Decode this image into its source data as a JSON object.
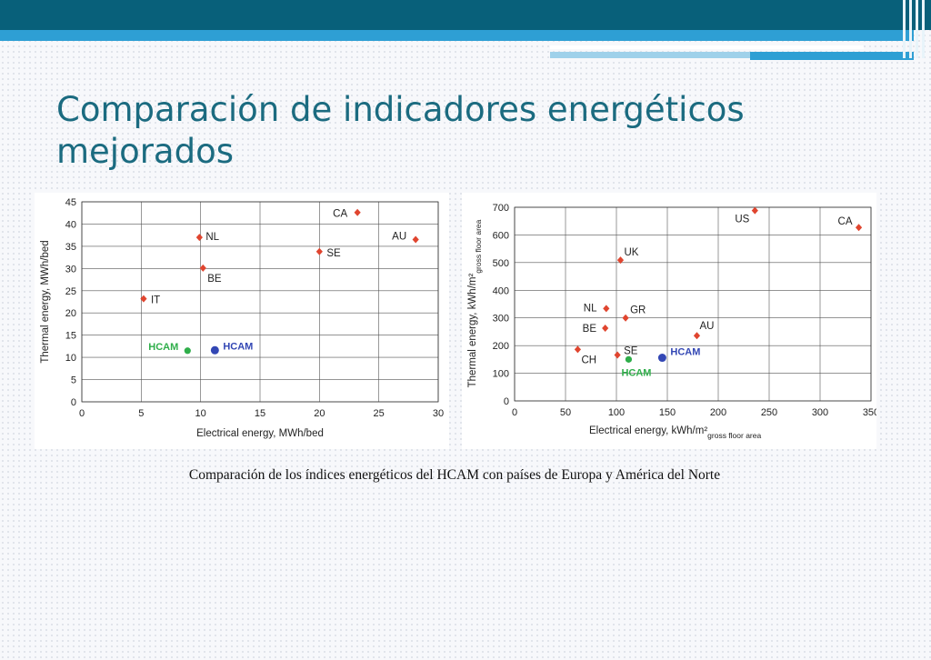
{
  "slide": {
    "title_line1": "Comparación de indicadores energéticos",
    "title_line2": "mejorados",
    "caption": "Comparación de los índices energéticos del HCAM con países de Europa y América del Norte"
  },
  "colors": {
    "header_dark": "#08607a",
    "header_band": "#2e9fd4",
    "title": "#1b6b80",
    "country_marker": "#e0452f",
    "hcam_green": "#2fae4a",
    "hcam_blue": "#3347b4"
  },
  "chart_data": [
    {
      "type": "scatter",
      "title": "",
      "xlabel": "Electrical energy, MWh/bed",
      "ylabel": "Thermal energy, MWh/bed",
      "xlim": [
        0,
        30
      ],
      "ylim": [
        0,
        45
      ],
      "xticks": [
        0,
        5,
        10,
        15,
        20,
        25,
        30
      ],
      "yticks": [
        0,
        5,
        10,
        15,
        20,
        25,
        30,
        35,
        40,
        45
      ],
      "grid": true,
      "countries": [
        {
          "label": "CA",
          "x": 23.2,
          "y": 42.6
        },
        {
          "label": "NL",
          "x": 9.9,
          "y": 37.0
        },
        {
          "label": "AU",
          "x": 28.1,
          "y": 36.5
        },
        {
          "label": "SE",
          "x": 20.0,
          "y": 33.8
        },
        {
          "label": "BE",
          "x": 10.2,
          "y": 30.1
        },
        {
          "label": "IT",
          "x": 5.2,
          "y": 23.2
        }
      ],
      "hcam": [
        {
          "label": "HCAM",
          "x": 8.9,
          "y": 11.5,
          "color": "#2fae4a"
        },
        {
          "label": "HCAM",
          "x": 11.2,
          "y": 11.6,
          "color": "#3347b4"
        }
      ]
    },
    {
      "type": "scatter",
      "title": "",
      "xlabel": "Electrical energy, kWh/m²",
      "xlabel_sub": "gross floor area",
      "ylabel": "Thermal energy, kWh/m²",
      "ylabel_sub": "gross floor area",
      "xlim": [
        0,
        350
      ],
      "ylim": [
        0,
        700
      ],
      "xticks": [
        0,
        50,
        100,
        150,
        200,
        250,
        300,
        350
      ],
      "yticks": [
        0,
        100,
        200,
        300,
        400,
        500,
        600,
        700
      ],
      "grid": true,
      "countries": [
        {
          "label": "US",
          "x": 236,
          "y": 688
        },
        {
          "label": "CA",
          "x": 338,
          "y": 627
        },
        {
          "label": "UK",
          "x": 104,
          "y": 509
        },
        {
          "label": "NL",
          "x": 90,
          "y": 334
        },
        {
          "label": "GR",
          "x": 109,
          "y": 300
        },
        {
          "label": "BE",
          "x": 89,
          "y": 263
        },
        {
          "label": "AU",
          "x": 179,
          "y": 236
        },
        {
          "label": "CH",
          "x": 62,
          "y": 186
        },
        {
          "label": "SE",
          "x": 101,
          "y": 166
        }
      ],
      "hcam": [
        {
          "label": "HCAM",
          "x": 112,
          "y": 150,
          "color": "#2fae4a"
        },
        {
          "label": "HCAM",
          "x": 145,
          "y": 156,
          "color": "#3347b4"
        }
      ]
    }
  ]
}
